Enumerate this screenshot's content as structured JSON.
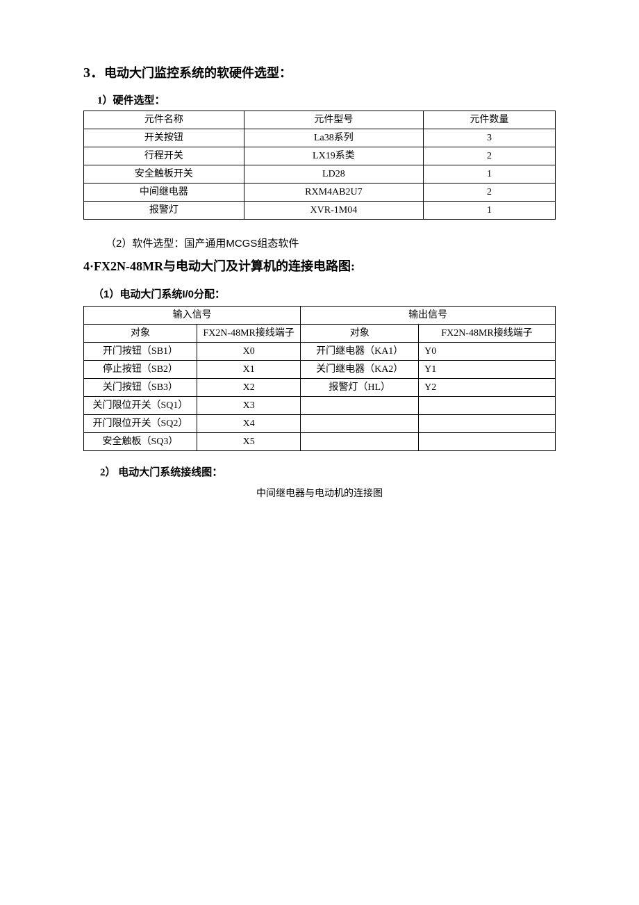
{
  "section3": {
    "number": "3．",
    "title": "电动大门监控系统的软硬件选型：",
    "hw_subtitle": "1）硬件选型：",
    "hw_table": {
      "headers": [
        "元件名称",
        "元件型号",
        "元件数量"
      ],
      "rows": [
        [
          "开关按钮",
          "La38系列",
          "3"
        ],
        [
          "行程开关",
          "LX19系类",
          "2"
        ],
        [
          "安全触板开关",
          "LD28",
          "1"
        ],
        [
          "中间继电器",
          "RXM4AB2U7",
          "2"
        ],
        [
          "报警灯",
          "XVR-1M04",
          "1"
        ]
      ],
      "col_widths": [
        "34%",
        "38%",
        "28%"
      ]
    },
    "sw_line": "（2）软件选型：国产通用MCGS组态软件"
  },
  "section4": {
    "number": "4·",
    "title": "FX2N-48MR与电动大门及计算机的连接电路图:",
    "io_subtitle": "（1）电动大门系统I/0分配：",
    "io_table": {
      "top_headers": [
        "输入信号",
        "输出信号"
      ],
      "sub_headers": [
        "对象",
        "FX2N-48MR接线端子",
        "对象",
        "FX2N-48MR接线端子"
      ],
      "rows": [
        [
          "开门按钮（SB1）",
          "X0",
          "开门继电器（KA1）",
          "Y0"
        ],
        [
          "停止按钮（SB2）",
          "X1",
          "关门继电器（KA2）",
          "Y1"
        ],
        [
          "关门按钮（SB3）",
          "X2",
          "报警灯（HL）",
          "Y2"
        ],
        [
          "关门限位开关（SQ1）",
          "X3",
          "",
          ""
        ],
        [
          "开门限位开关（SQ2）",
          "X4",
          "",
          ""
        ],
        [
          "安全触板（SQ3）",
          "X5",
          "",
          ""
        ]
      ],
      "col_widths": [
        "24%",
        "22%",
        "25%",
        "29%"
      ]
    },
    "wiring_subtitle": "2） 电动大门系统接线图：",
    "caption": "中间继电器与电动机的连接图"
  },
  "colors": {
    "text": "#000000",
    "background": "#ffffff",
    "border": "#000000"
  }
}
